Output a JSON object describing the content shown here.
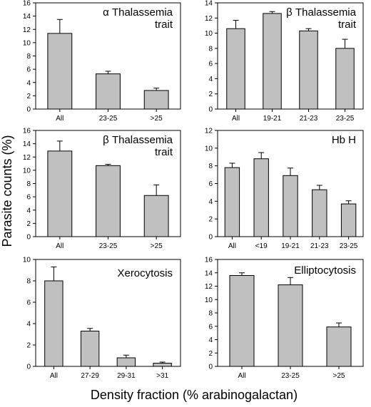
{
  "figure": {
    "ylabel": "Parasite counts (%)",
    "xlabel": "Density fraction (% arabinogalactan)"
  },
  "chart_data": [
    {
      "type": "bar",
      "title": [
        "α Thalassemia",
        "trait"
      ],
      "categories": [
        "All",
        "23-25",
        ">25"
      ],
      "values": [
        11.4,
        5.3,
        2.8
      ],
      "errors": [
        2.1,
        0.4,
        0.35
      ],
      "ylim": [
        0,
        16
      ],
      "yticks": [
        0,
        2,
        4,
        6,
        8,
        10,
        12,
        14,
        16
      ],
      "grid": false,
      "bar_color": "#c0c0c0"
    },
    {
      "type": "bar",
      "title": [
        "β Thalassemia",
        "trait"
      ],
      "categories": [
        "All",
        "19-21",
        "21-23",
        "23-25"
      ],
      "values": [
        10.6,
        12.6,
        10.3,
        8.0
      ],
      "errors": [
        1.1,
        0.25,
        0.3,
        1.2
      ],
      "ylim": [
        0,
        14
      ],
      "yticks": [
        0,
        2,
        4,
        6,
        8,
        10,
        12,
        14
      ],
      "grid": false,
      "bar_color": "#c0c0c0"
    },
    {
      "type": "bar",
      "title": [
        "β Thalassemia",
        "trait"
      ],
      "categories": [
        "All",
        "23-25",
        ">25"
      ],
      "values": [
        12.9,
        10.7,
        6.2
      ],
      "errors": [
        1.5,
        0.2,
        1.6
      ],
      "ylim": [
        0,
        16
      ],
      "yticks": [
        0,
        2,
        4,
        6,
        8,
        10,
        12,
        14,
        16
      ],
      "grid": false,
      "bar_color": "#c0c0c0"
    },
    {
      "type": "bar",
      "title": [
        "Hb H"
      ],
      "categories": [
        "All",
        "<19",
        "19-21",
        "21-23",
        "23-25"
      ],
      "values": [
        7.8,
        8.8,
        6.9,
        5.3,
        3.7
      ],
      "errors": [
        0.5,
        0.7,
        0.85,
        0.5,
        0.35
      ],
      "ylim": [
        0,
        12
      ],
      "yticks": [
        0,
        2,
        4,
        6,
        8,
        10,
        12
      ],
      "grid": false,
      "bar_color": "#c0c0c0"
    },
    {
      "type": "bar",
      "title": [
        "Xerocytosis"
      ],
      "categories": [
        "All",
        "27-29",
        "29-31",
        ">31"
      ],
      "values": [
        8.0,
        3.3,
        0.8,
        0.3
      ],
      "errors": [
        1.3,
        0.25,
        0.25,
        0.1
      ],
      "ylim": [
        0,
        10
      ],
      "yticks": [
        0,
        2,
        4,
        6,
        8,
        10
      ],
      "grid": false,
      "bar_color": "#c0c0c0"
    },
    {
      "type": "bar",
      "title": [
        "Elliptocytosis"
      ],
      "categories": [
        "All",
        "23-25",
        ">25"
      ],
      "values": [
        13.6,
        12.2,
        5.9
      ],
      "errors": [
        0.4,
        1.1,
        0.6
      ],
      "ylim": [
        0,
        16
      ],
      "yticks": [
        0,
        2,
        4,
        6,
        8,
        10,
        12,
        14,
        16
      ],
      "grid": false,
      "bar_color": "#c0c0c0"
    }
  ]
}
